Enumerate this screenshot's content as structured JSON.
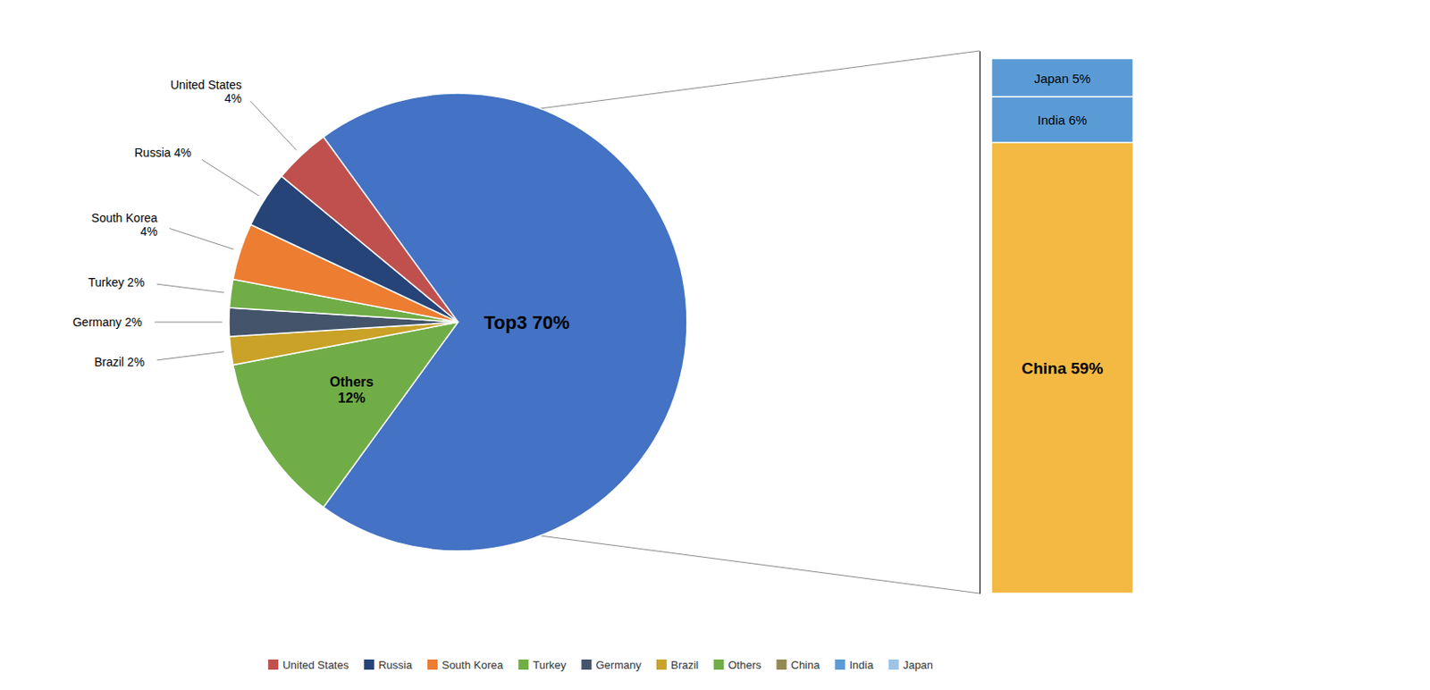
{
  "chart_data": [
    {
      "type": "pie",
      "categories": [
        "Top3 70%",
        "Others\n12%",
        "Brazil 2%",
        "Germany 2%",
        "Turkey 2%",
        "South Korea\n4%",
        "Russia 4%",
        "United States\n4%"
      ],
      "values": [
        70,
        12,
        2,
        2,
        2,
        4,
        4,
        4
      ],
      "colors": [
        "#4472C4",
        "#70AD47",
        "#C9A227",
        "#44546A",
        "#70AD47",
        "#ED7D31",
        "#264478",
        "#C0504D"
      ]
    },
    {
      "type": "bar",
      "stacked": true,
      "tick_labels": false,
      "categories": [
        null
      ],
      "series": [
        {
          "name": "China 59%",
          "color": "#F4B942",
          "values": [
            59
          ]
        },
        {
          "name": "India 6%",
          "color": "#5B9BD5",
          "values": [
            6
          ]
        },
        {
          "name": "Japan 5%",
          "color": "#5B9BD5",
          "values": [
            5
          ]
        }
      ],
      "ylim": [
        0,
        71
      ]
    },
    {
      "type": "legend",
      "legend": "bottom",
      "series": [
        {
          "name": "United States",
          "color": "#C0504D"
        },
        {
          "name": "Russia",
          "color": "#264478"
        },
        {
          "name": "South Korea",
          "color": "#ED7D31"
        },
        {
          "name": "Turkey",
          "color": "#70AD47"
        },
        {
          "name": "Germany",
          "color": "#44546A"
        },
        {
          "name": "Brazil",
          "color": "#C9A227"
        },
        {
          "name": "Others",
          "color": "#70AD47"
        },
        {
          "name": "China",
          "color": "#948A54"
        },
        {
          "name": "India",
          "color": "#5B9BD5"
        },
        {
          "name": "Japan",
          "color": "#9DC3E6"
        }
      ]
    }
  ]
}
